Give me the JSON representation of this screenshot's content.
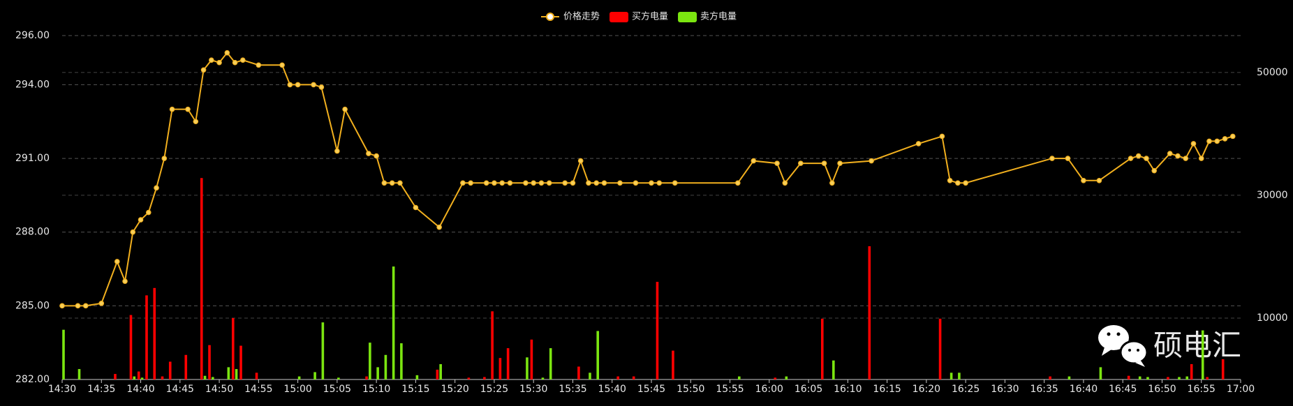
{
  "chart_data": {
    "type": "combo",
    "watermark": "硕电汇",
    "xlim": [
      "14:30",
      "17:00"
    ],
    "xticks": [
      "14:30",
      "14:35",
      "14:40",
      "14:45",
      "14:50",
      "14:55",
      "15:00",
      "15:05",
      "15:10",
      "15:15",
      "15:20",
      "15:25",
      "15:30",
      "15:35",
      "15:40",
      "15:45",
      "15:50",
      "15:55",
      "16:00",
      "16:05",
      "16:10",
      "16:15",
      "16:20",
      "16:25",
      "16:30",
      "16:35",
      "16:40",
      "16:45",
      "16:50",
      "16:55",
      "17:00"
    ],
    "ylim": [
      282,
      296
    ],
    "yticks": [
      {
        "value": 282,
        "label": "282.00"
      },
      {
        "value": 285,
        "label": "285.00"
      },
      {
        "value": 288,
        "label": "288.00"
      },
      {
        "value": 291,
        "label": "291.00"
      },
      {
        "value": 294,
        "label": "294.00"
      },
      {
        "value": 296,
        "label": "296.00"
      }
    ],
    "y2lim": [
      0,
      56000
    ],
    "y2ticks": [
      10000,
      30000,
      50000
    ],
    "grid": true,
    "series": [
      {
        "name": "价格走势",
        "type": "line",
        "color": "#f2b01e",
        "x": [
          "14:30",
          "14:32",
          "14:33",
          "14:35",
          "14:37",
          "14:38",
          "14:39",
          "14:40",
          "14:41",
          "14:42",
          "14:43",
          "14:44",
          "14:46",
          "14:47",
          "14:48",
          "14:49",
          "14:50",
          "14:51",
          "14:52",
          "14:53",
          "14:55",
          "14:58",
          "14:59",
          "15:00",
          "15:02",
          "15:03",
          "15:05",
          "15:06",
          "15:09",
          "15:10",
          "15:11",
          "15:12",
          "15:13",
          "15:15",
          "15:18",
          "15:21",
          "15:22",
          "15:24",
          "15:25",
          "15:26",
          "15:27",
          "15:29",
          "15:30",
          "15:31",
          "15:32",
          "15:34",
          "15:35",
          "15:36",
          "15:37",
          "15:38",
          "15:39",
          "15:41",
          "15:43",
          "15:45",
          "15:46",
          "15:48",
          "15:56",
          "15:58",
          "16:01",
          "16:02",
          "16:04",
          "16:07",
          "16:08",
          "16:09",
          "16:13",
          "16:19",
          "16:22",
          "16:23",
          "16:24",
          "16:25",
          "16:36",
          "16:38",
          "16:40",
          "16:42",
          "16:46",
          "16:47",
          "16:48",
          "16:49",
          "16:51",
          "16:52",
          "16:53",
          "16:54",
          "16:55",
          "16:56",
          "16:57",
          "16:58",
          "16:59"
        ],
        "values": [
          285,
          285,
          285,
          285.1,
          286.8,
          286,
          288,
          288.5,
          288.8,
          289.8,
          291,
          293,
          293,
          292.5,
          294.6,
          295,
          294.9,
          295.3,
          294.9,
          295,
          294.8,
          294.8,
          294,
          294,
          294,
          293.9,
          291.3,
          293,
          291.2,
          291.1,
          290,
          290,
          290,
          289,
          288.2,
          290,
          290,
          290,
          290,
          290,
          290,
          290,
          290,
          290,
          290,
          290,
          290,
          290.9,
          290,
          290,
          290,
          290,
          290,
          290,
          290,
          290,
          290,
          290.9,
          290.8,
          290,
          290.8,
          290.8,
          290,
          290.8,
          290.9,
          291.6,
          291.9,
          290.1,
          290,
          290,
          291,
          291,
          290.1,
          290.1,
          291,
          291.1,
          291,
          290.5,
          291.2,
          291.1,
          291,
          291.6,
          291,
          291.7,
          291.7,
          291.8,
          291.9
        ]
      },
      {
        "name": "买方电量",
        "type": "bar",
        "axis": "y2",
        "color": "#ff0000",
        "offset": -1,
        "x": [
          "14:37",
          "14:39",
          "14:40",
          "14:41",
          "14:42",
          "14:43",
          "14:44",
          "14:46",
          "14:48",
          "14:49",
          "14:52",
          "14:53",
          "14:55",
          "15:09",
          "15:18",
          "15:22",
          "15:24",
          "15:25",
          "15:26",
          "15:27",
          "15:30",
          "15:36",
          "15:41",
          "15:43",
          "15:46",
          "15:48",
          "16:01",
          "16:07",
          "16:13",
          "16:22",
          "16:36",
          "16:46",
          "16:51",
          "16:54",
          "16:56",
          "16:58"
        ],
        "values": [
          900,
          10500,
          1300,
          13700,
          14900,
          500,
          2900,
          4000,
          32800,
          5600,
          10000,
          5500,
          1100,
          500,
          1600,
          300,
          400,
          11100,
          3500,
          5100,
          6500,
          2100,
          500,
          500,
          15900,
          4700,
          300,
          9900,
          21700,
          9900,
          500,
          600,
          400,
          2500,
          400,
          3300
        ]
      },
      {
        "name": "卖方电量",
        "type": "bar",
        "axis": "y2",
        "color": "#7be510",
        "offset": 1,
        "x": [
          "14:30",
          "14:32",
          "14:39",
          "14:40",
          "14:48",
          "14:49",
          "14:51",
          "14:52",
          "15:00",
          "15:02",
          "15:03",
          "15:05",
          "15:09",
          "15:10",
          "15:11",
          "15:12",
          "15:13",
          "15:15",
          "15:18",
          "15:29",
          "15:31",
          "15:32",
          "15:37",
          "15:38",
          "15:56",
          "16:02",
          "16:08",
          "16:23",
          "16:24",
          "16:38",
          "16:42",
          "16:47",
          "16:48",
          "16:52",
          "16:53",
          "16:55"
        ],
        "values": [
          8100,
          1700,
          500,
          300,
          600,
          400,
          2000,
          1700,
          500,
          1200,
          9300,
          300,
          6000,
          2000,
          4000,
          18400,
          5900,
          700,
          2500,
          3600,
          300,
          5100,
          1100,
          7900,
          500,
          500,
          3100,
          1100,
          1100,
          500,
          2000,
          500,
          400,
          400,
          500,
          8000
        ]
      }
    ]
  }
}
